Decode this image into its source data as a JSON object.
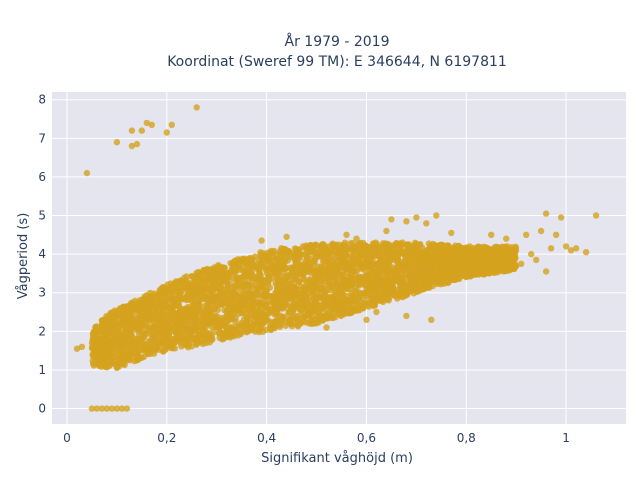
{
  "chart_data": {
    "type": "scatter",
    "title_line1": "År 1979 - 2019",
    "title_line2": "Koordinat (Sweref 99 TM): E 346644, N 6197811",
    "xlabel": "Signifikant våghöjd (m)",
    "ylabel": "Vågperiod (s)",
    "xlim": [
      -0.03,
      1.12
    ],
    "ylim": [
      -0.4,
      8.2
    ],
    "x_ticks": [
      0,
      0.2,
      0.4,
      0.6,
      0.8,
      1
    ],
    "x_tick_labels": [
      "0",
      "0,2",
      "0,4",
      "0,6",
      "0,8",
      "1"
    ],
    "y_ticks": [
      0,
      1,
      2,
      3,
      4,
      5,
      6,
      7,
      8
    ],
    "y_tick_labels": [
      "0",
      "1",
      "2",
      "3",
      "4",
      "5",
      "6",
      "7",
      "8"
    ],
    "grid": true,
    "marker_color": "#D4A31E",
    "plot_bg": "#E5E5EF",
    "dense_band": [
      {
        "x": 0.05,
        "y_low": 1.1,
        "y_high": 2.1
      },
      {
        "x": 0.1,
        "y_low": 1.05,
        "y_high": 2.6
      },
      {
        "x": 0.15,
        "y_low": 1.3,
        "y_high": 2.9
      },
      {
        "x": 0.2,
        "y_low": 1.5,
        "y_high": 3.2
      },
      {
        "x": 0.25,
        "y_low": 1.6,
        "y_high": 3.5
      },
      {
        "x": 0.3,
        "y_low": 1.75,
        "y_high": 3.7
      },
      {
        "x": 0.35,
        "y_low": 1.9,
        "y_high": 3.9
      },
      {
        "x": 0.4,
        "y_low": 2.0,
        "y_high": 4.1
      },
      {
        "x": 0.45,
        "y_low": 2.1,
        "y_high": 4.2
      },
      {
        "x": 0.5,
        "y_low": 2.2,
        "y_high": 4.25
      },
      {
        "x": 0.55,
        "y_low": 2.4,
        "y_high": 4.3
      },
      {
        "x": 0.6,
        "y_low": 2.6,
        "y_high": 4.3
      },
      {
        "x": 0.65,
        "y_low": 2.8,
        "y_high": 4.3
      },
      {
        "x": 0.7,
        "y_low": 3.0,
        "y_high": 4.3
      },
      {
        "x": 0.75,
        "y_low": 3.2,
        "y_high": 4.25
      },
      {
        "x": 0.8,
        "y_low": 3.4,
        "y_high": 4.2
      },
      {
        "x": 0.85,
        "y_low": 3.5,
        "y_high": 4.2
      },
      {
        "x": 0.9,
        "y_low": 3.6,
        "y_high": 4.2
      }
    ],
    "scattered_points": [
      {
        "x": 0.04,
        "y": 6.1
      },
      {
        "x": 0.1,
        "y": 6.9
      },
      {
        "x": 0.13,
        "y": 6.8
      },
      {
        "x": 0.13,
        "y": 7.2
      },
      {
        "x": 0.14,
        "y": 6.85
      },
      {
        "x": 0.15,
        "y": 7.2
      },
      {
        "x": 0.16,
        "y": 7.4
      },
      {
        "x": 0.17,
        "y": 7.35
      },
      {
        "x": 0.2,
        "y": 7.15
      },
      {
        "x": 0.21,
        "y": 7.35
      },
      {
        "x": 0.26,
        "y": 7.8
      },
      {
        "x": 0.03,
        "y": 1.6
      },
      {
        "x": 0.02,
        "y": 1.55
      },
      {
        "x": 0.65,
        "y": 4.9
      },
      {
        "x": 0.68,
        "y": 4.85
      },
      {
        "x": 0.7,
        "y": 4.95
      },
      {
        "x": 0.74,
        "y": 5.0
      },
      {
        "x": 0.72,
        "y": 4.8
      },
      {
        "x": 0.64,
        "y": 4.6
      },
      {
        "x": 0.77,
        "y": 4.55
      },
      {
        "x": 0.85,
        "y": 4.5
      },
      {
        "x": 0.88,
        "y": 4.4
      },
      {
        "x": 0.92,
        "y": 4.5
      },
      {
        "x": 0.95,
        "y": 4.6
      },
      {
        "x": 0.96,
        "y": 5.05
      },
      {
        "x": 0.99,
        "y": 4.95
      },
      {
        "x": 0.98,
        "y": 4.5
      },
      {
        "x": 1.0,
        "y": 4.2
      },
      {
        "x": 1.01,
        "y": 4.1
      },
      {
        "x": 1.02,
        "y": 4.15
      },
      {
        "x": 1.04,
        "y": 4.05
      },
      {
        "x": 1.06,
        "y": 5.0
      },
      {
        "x": 0.97,
        "y": 4.15
      },
      {
        "x": 0.93,
        "y": 4.0
      },
      {
        "x": 0.91,
        "y": 3.75
      },
      {
        "x": 0.94,
        "y": 3.85
      },
      {
        "x": 0.96,
        "y": 3.55
      },
      {
        "x": 0.6,
        "y": 2.3
      },
      {
        "x": 0.62,
        "y": 2.5
      },
      {
        "x": 0.68,
        "y": 2.4
      },
      {
        "x": 0.73,
        "y": 2.3
      },
      {
        "x": 0.52,
        "y": 2.1
      },
      {
        "x": 0.56,
        "y": 4.5
      },
      {
        "x": 0.58,
        "y": 4.4
      },
      {
        "x": 0.44,
        "y": 4.45
      },
      {
        "x": 0.39,
        "y": 4.35
      },
      {
        "x": 0.85,
        "y": 3.55
      },
      {
        "x": 0.81,
        "y": 3.45
      }
    ],
    "zero_points": [
      {
        "x": 0.05,
        "y": 0
      },
      {
        "x": 0.06,
        "y": 0
      },
      {
        "x": 0.07,
        "y": 0
      },
      {
        "x": 0.08,
        "y": 0
      },
      {
        "x": 0.09,
        "y": 0
      },
      {
        "x": 0.1,
        "y": 0
      },
      {
        "x": 0.11,
        "y": 0
      },
      {
        "x": 0.12,
        "y": 0
      }
    ]
  }
}
